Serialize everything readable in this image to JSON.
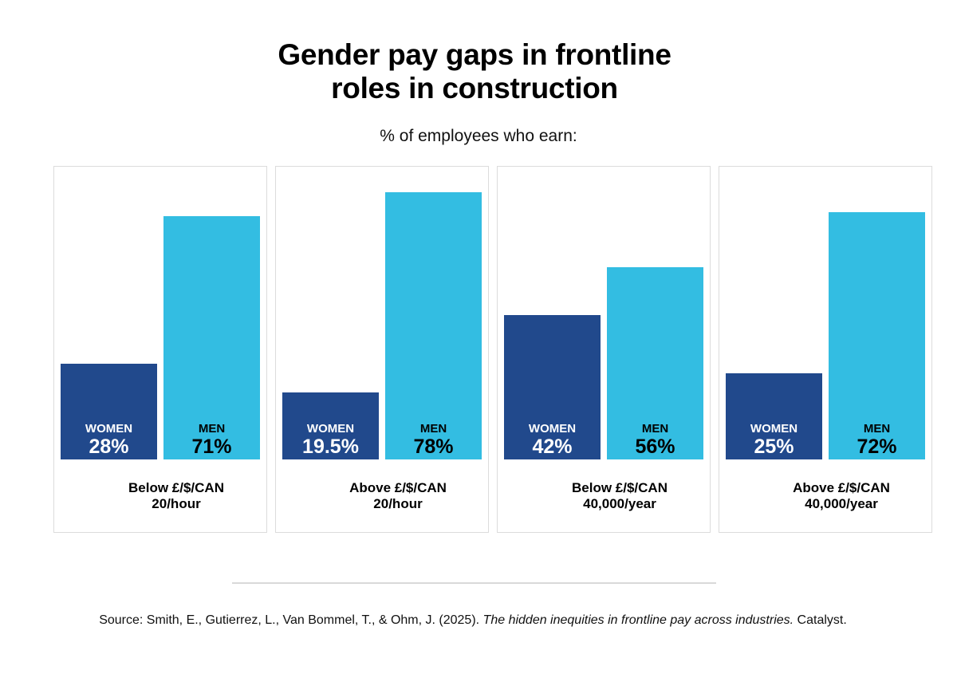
{
  "chart_data": {
    "type": "bar",
    "title": "Gender pay gaps in frontline roles in construction",
    "title_lines": [
      "Gender pay gaps in frontline",
      "roles in construction"
    ],
    "subtitle": "% of employees who earn:",
    "xlabel": "",
    "ylabel": "% of employees",
    "ylim": [
      0,
      100
    ],
    "grid": false,
    "legend": "none (series labeled inside bars)",
    "categories": [
      {
        "line1": "Below £/$/CAN",
        "line2": "20/hour"
      },
      {
        "line1": "Above £/$/CAN",
        "line2": "20/hour"
      },
      {
        "line1": "Below £/$/CAN",
        "line2": "40,000/year"
      },
      {
        "line1": "Above £/$/CAN",
        "line2": "40,000/year"
      }
    ],
    "series": [
      {
        "name": "WOMEN",
        "color": "#21498C",
        "text_color": "#FFFFFF",
        "values": [
          28,
          19.5,
          42,
          25
        ],
        "labels": [
          "28%",
          "19.5%",
          "42%",
          "25%"
        ]
      },
      {
        "name": "MEN",
        "color": "#33BDE2",
        "text_color": "#000000",
        "values": [
          71,
          78,
          56,
          72
        ],
        "labels": [
          "71%",
          "78%",
          "56%",
          "72%"
        ]
      }
    ]
  },
  "footer": {
    "source_prefix": "Source: Smith, E., Gutierrez, L., Van Bommel, T., & Ohm, J. (2025). ",
    "source_title": "The hidden inequities in frontline pay across industries.",
    "source_suffix": " Catalyst."
  }
}
